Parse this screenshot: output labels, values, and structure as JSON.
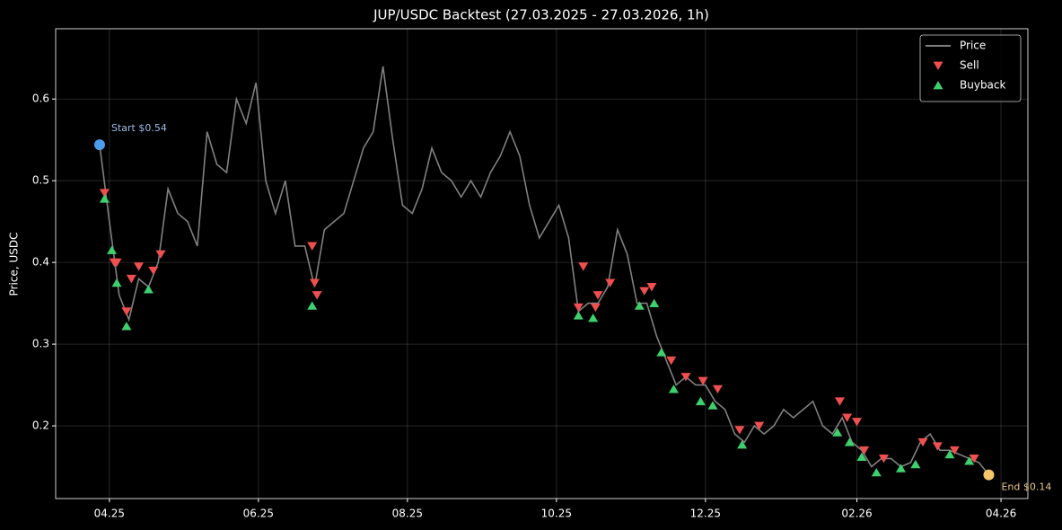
{
  "chart_data": {
    "type": "line",
    "title": "JUP/USDC Backtest (27.03.2025 - 27.03.2026, 1h)",
    "y_label": "Price, USDC",
    "xlim": [
      "2025-03-10",
      "2026-04-12"
    ],
    "ylim": [
      0.111,
      0.686
    ],
    "xticks": [
      {
        "value": "2025-04-01",
        "label": "04.25"
      },
      {
        "value": "2025-06-01",
        "label": "06.25"
      },
      {
        "value": "2025-08-01",
        "label": "08.25"
      },
      {
        "value": "2025-10-01",
        "label": "10.25"
      },
      {
        "value": "2025-12-01",
        "label": "12.25"
      },
      {
        "value": "2026-02-01",
        "label": "02.26"
      },
      {
        "value": "2026-04-01",
        "label": "04.26"
      }
    ],
    "yticks": [
      0.2,
      0.3,
      0.4,
      0.5,
      0.6
    ],
    "grid": true,
    "legend": "upper right",
    "series": [
      {
        "name": "Price",
        "kind": "line",
        "color": "#808080",
        "x": [
          "2025-03-28",
          "2025-04-01",
          "2025-04-05",
          "2025-04-09",
          "2025-04-13",
          "2025-04-17",
          "2025-04-21",
          "2025-04-25",
          "2025-04-29",
          "2025-05-03",
          "2025-05-07",
          "2025-05-11",
          "2025-05-15",
          "2025-05-19",
          "2025-05-23",
          "2025-05-27",
          "2025-05-31",
          "2025-06-04",
          "2025-06-08",
          "2025-06-12",
          "2025-06-16",
          "2025-06-20",
          "2025-06-24",
          "2025-06-28",
          "2025-07-02",
          "2025-07-06",
          "2025-07-10",
          "2025-07-14",
          "2025-07-18",
          "2025-07-22",
          "2025-07-26",
          "2025-07-30",
          "2025-08-03",
          "2025-08-07",
          "2025-08-11",
          "2025-08-15",
          "2025-08-19",
          "2025-08-23",
          "2025-08-27",
          "2025-08-31",
          "2025-09-04",
          "2025-09-08",
          "2025-09-12",
          "2025-09-16",
          "2025-09-20",
          "2025-09-24",
          "2025-09-28",
          "2025-10-02",
          "2025-10-06",
          "2025-10-10",
          "2025-10-14",
          "2025-10-18",
          "2025-10-22",
          "2025-10-26",
          "2025-10-30",
          "2025-11-03",
          "2025-11-07",
          "2025-11-11",
          "2025-11-15",
          "2025-11-19",
          "2025-11-23",
          "2025-11-27",
          "2025-12-01",
          "2025-12-05",
          "2025-12-09",
          "2025-12-13",
          "2025-12-17",
          "2025-12-21",
          "2025-12-25",
          "2025-12-29",
          "2026-01-02",
          "2026-01-06",
          "2026-01-10",
          "2026-01-14",
          "2026-01-18",
          "2026-01-22",
          "2026-01-26",
          "2026-01-30",
          "2026-02-03",
          "2026-02-07",
          "2026-02-11",
          "2026-02-15",
          "2026-02-19",
          "2026-02-23",
          "2026-02-27",
          "2026-03-03",
          "2026-03-07",
          "2026-03-11",
          "2026-03-15",
          "2026-03-19",
          "2026-03-23",
          "2026-03-27"
        ],
        "values": [
          0.544,
          0.45,
          0.36,
          0.33,
          0.38,
          0.37,
          0.4,
          0.49,
          0.46,
          0.45,
          0.42,
          0.56,
          0.52,
          0.51,
          0.6,
          0.57,
          0.62,
          0.5,
          0.46,
          0.5,
          0.42,
          0.42,
          0.37,
          0.44,
          0.45,
          0.46,
          0.5,
          0.54,
          0.56,
          0.64,
          0.55,
          0.47,
          0.46,
          0.49,
          0.54,
          0.51,
          0.5,
          0.48,
          0.5,
          0.48,
          0.51,
          0.53,
          0.56,
          0.53,
          0.47,
          0.43,
          0.45,
          0.47,
          0.43,
          0.34,
          0.35,
          0.35,
          0.37,
          0.44,
          0.41,
          0.35,
          0.35,
          0.31,
          0.28,
          0.25,
          0.26,
          0.25,
          0.25,
          0.23,
          0.22,
          0.19,
          0.18,
          0.2,
          0.19,
          0.2,
          0.22,
          0.21,
          0.22,
          0.23,
          0.2,
          0.19,
          0.21,
          0.18,
          0.17,
          0.15,
          0.16,
          0.16,
          0.15,
          0.155,
          0.18,
          0.19,
          0.17,
          0.17,
          0.165,
          0.16,
          0.155,
          0.14
        ]
      },
      {
        "name": "Sell",
        "kind": "scatter",
        "marker": "down",
        "color": "#ef4f4f",
        "x": [
          "2025-03-30",
          "2025-04-03",
          "2025-04-04",
          "2025-04-08",
          "2025-04-10",
          "2025-04-13",
          "2025-04-19",
          "2025-04-22",
          "2025-06-23",
          "2025-06-24",
          "2025-06-25",
          "2025-10-10",
          "2025-10-12",
          "2025-10-17",
          "2025-10-18",
          "2025-10-23",
          "2025-11-06",
          "2025-11-09",
          "2025-11-17",
          "2025-11-23",
          "2025-11-30",
          "2025-12-06",
          "2025-12-15",
          "2025-12-23",
          "2026-01-25",
          "2026-01-28",
          "2026-02-01",
          "2026-02-04",
          "2026-02-12",
          "2026-02-28",
          "2026-03-06",
          "2026-03-13",
          "2026-03-21"
        ],
        "values": [
          0.485,
          0.4,
          0.4,
          0.34,
          0.38,
          0.395,
          0.39,
          0.41,
          0.42,
          0.375,
          0.36,
          0.345,
          0.395,
          0.345,
          0.36,
          0.375,
          0.365,
          0.37,
          0.28,
          0.26,
          0.255,
          0.245,
          0.195,
          0.2,
          0.23,
          0.21,
          0.205,
          0.17,
          0.16,
          0.18,
          0.175,
          0.17,
          0.16
        ]
      },
      {
        "name": "Buyback",
        "kind": "scatter",
        "marker": "up",
        "color": "#3ecf6e",
        "x": [
          "2025-03-30",
          "2025-04-02",
          "2025-04-04",
          "2025-04-08",
          "2025-04-17",
          "2025-06-23",
          "2025-10-10",
          "2025-10-16",
          "2025-11-04",
          "2025-11-10",
          "2025-11-13",
          "2025-11-18",
          "2025-11-29",
          "2025-12-04",
          "2025-12-16",
          "2026-01-24",
          "2026-01-29",
          "2026-02-03",
          "2026-02-09",
          "2026-02-19",
          "2026-02-25",
          "2026-03-11",
          "2026-03-19"
        ],
        "values": [
          0.478,
          0.415,
          0.375,
          0.322,
          0.367,
          0.347,
          0.335,
          0.332,
          0.347,
          0.35,
          0.29,
          0.245,
          0.23,
          0.225,
          0.177,
          0.192,
          0.18,
          0.162,
          0.143,
          0.148,
          0.153,
          0.165,
          0.157
        ]
      }
    ],
    "annotations": [
      {
        "text": "Start $0.54",
        "x": "2025-03-28",
        "y": 0.544,
        "color": "#4a9eed",
        "text_color": "#9dbbe6"
      },
      {
        "text": "End $0.14",
        "x": "2026-03-27",
        "y": 0.14,
        "color": "#f7c66b",
        "text_color": "#e8c98a"
      }
    ]
  }
}
